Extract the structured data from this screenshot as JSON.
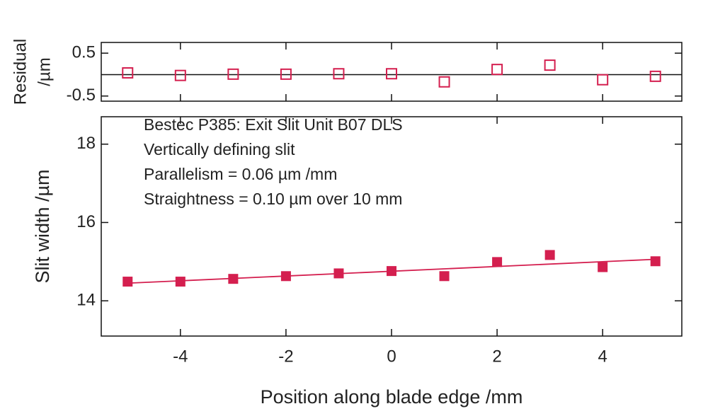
{
  "chart_data": [
    {
      "type": "scatter",
      "ylabel_lines": [
        "Residual",
        "/µm"
      ],
      "x": [
        -5,
        -4,
        -3,
        -2,
        -1,
        0,
        1,
        2,
        3,
        4,
        5
      ],
      "series": [
        {
          "color": "#d41f4f",
          "marker": "square",
          "filled": false,
          "values": [
            0.04,
            -0.02,
            0.01,
            0.01,
            0.02,
            0.02,
            -0.17,
            0.12,
            0.22,
            -0.12,
            -0.04
          ]
        }
      ],
      "zero_line": true,
      "xlim": [
        -5.5,
        5.5
      ],
      "xticks": [
        -4,
        -2,
        0,
        2,
        4
      ],
      "ylim": [
        -0.62,
        0.75
      ],
      "yticks": [
        -0.5,
        0.5
      ]
    },
    {
      "type": "scatter",
      "xlabel": "Position along blade edge /mm",
      "ylabel": "Slit width /µm",
      "annotations": [
        "Bestec P385: Exit Slit Unit B07 DLS",
        "Vertically defining slit",
        "Parallelism =  0.06 µm /mm",
        "Straightness =  0.10 µm over 10 mm"
      ],
      "x": [
        -5,
        -4,
        -3,
        -2,
        -1,
        0,
        1,
        2,
        3,
        4,
        5
      ],
      "series": [
        {
          "color": "#d41f4f",
          "marker": "square",
          "filled": true,
          "values": [
            14.49,
            14.49,
            14.56,
            14.63,
            14.7,
            14.76,
            14.63,
            14.99,
            15.17,
            14.86,
            15.01
          ]
        },
        {
          "color": "#d41f4f",
          "marker": "line",
          "x": [
            -5,
            5
          ],
          "values": [
            14.45,
            15.06
          ]
        }
      ],
      "xlim": [
        -5.5,
        5.5
      ],
      "xticks": [
        -4,
        -2,
        0,
        2,
        4
      ],
      "ylim": [
        13.1,
        18.7
      ],
      "yticks": [
        14,
        16,
        18
      ]
    }
  ]
}
